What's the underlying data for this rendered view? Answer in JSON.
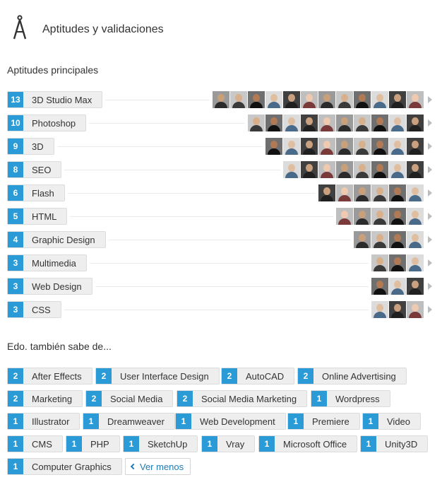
{
  "header": {
    "title": "Aptitudes y validaciones",
    "icon": "compass-icon"
  },
  "top_skills_title": "Aptitudes principales",
  "top_skills": [
    {
      "count": "13",
      "name": "3D Studio Max",
      "endorsers": 12
    },
    {
      "count": "10",
      "name": "Photoshop",
      "endorsers": 10
    },
    {
      "count": "9",
      "name": "3D",
      "endorsers": 9
    },
    {
      "count": "8",
      "name": "SEO",
      "endorsers": 8
    },
    {
      "count": "6",
      "name": "Flash",
      "endorsers": 6
    },
    {
      "count": "5",
      "name": "HTML",
      "endorsers": 5
    },
    {
      "count": "4",
      "name": "Graphic Design",
      "endorsers": 4
    },
    {
      "count": "3",
      "name": "Multimedia",
      "endorsers": 3
    },
    {
      "count": "3",
      "name": "Web Design",
      "endorsers": 3
    },
    {
      "count": "3",
      "name": "CSS",
      "endorsers": 3
    }
  ],
  "also_knows_title": "Edo. también sabe de...",
  "other_skills": [
    {
      "count": "2",
      "name": "After Effects"
    },
    {
      "count": "2",
      "name": "User Interface Design"
    },
    {
      "count": "2",
      "name": "AutoCAD"
    },
    {
      "count": "2",
      "name": "Online Advertising"
    },
    {
      "count": "2",
      "name": "Marketing"
    },
    {
      "count": "2",
      "name": "Social Media"
    },
    {
      "count": "2",
      "name": "Social Media Marketing"
    },
    {
      "count": "1",
      "name": "Wordpress"
    },
    {
      "count": "1",
      "name": "Illustrator"
    },
    {
      "count": "1",
      "name": "Dreamweaver"
    },
    {
      "count": "1",
      "name": "Web Development"
    },
    {
      "count": "1",
      "name": "Premiere"
    },
    {
      "count": "1",
      "name": "Video"
    },
    {
      "count": "1",
      "name": "CMS"
    },
    {
      "count": "1",
      "name": "PHP"
    },
    {
      "count": "1",
      "name": "SketchUp"
    },
    {
      "count": "1",
      "name": "Vray"
    },
    {
      "count": "1",
      "name": "Microsoft Office"
    },
    {
      "count": "1",
      "name": "Unity3D"
    },
    {
      "count": "1",
      "name": "Computer Graphics"
    }
  ],
  "see_less_label": "Ver menos",
  "colors": {
    "accent": "#2a9bd6",
    "link": "#1f7bb8",
    "pill_bg": "#eeeeee"
  }
}
